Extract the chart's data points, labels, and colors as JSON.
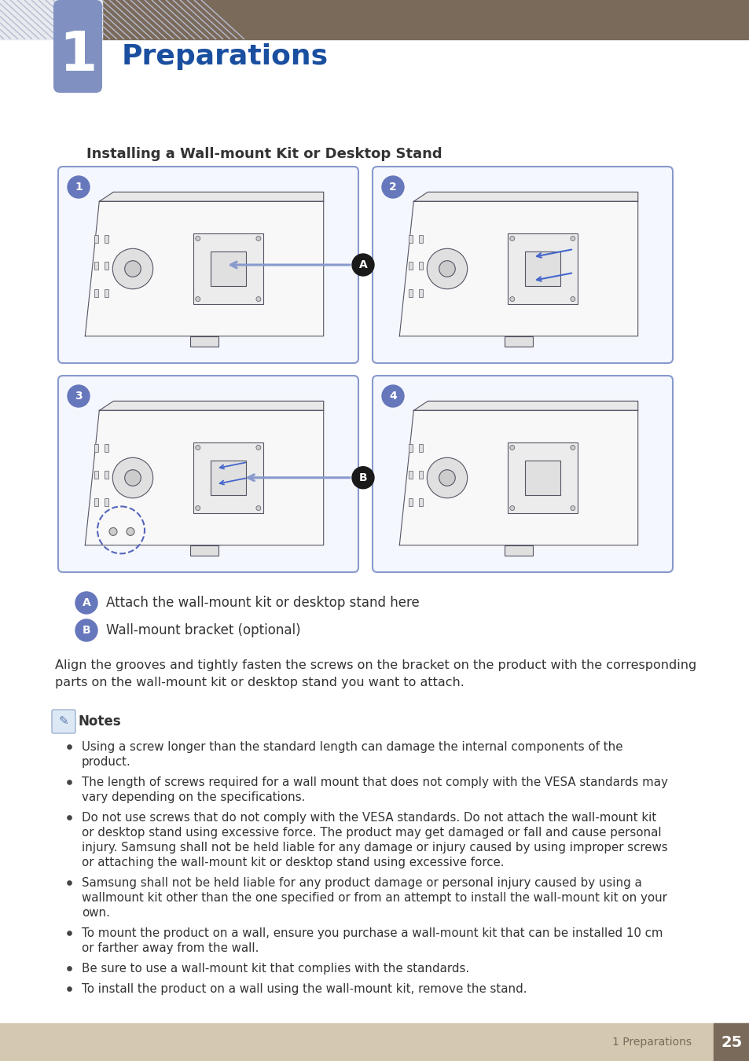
{
  "bg_color": "#ffffff",
  "header_bar_color": "#7a6a5a",
  "chapter_box_color": "#8090c0",
  "chapter_number": "1",
  "chapter_title": "Preparations",
  "chapter_title_color": "#1a4fa0",
  "footer_bar_color": "#d4c8b0",
  "footer_text": "1 Preparations",
  "footer_number": "25",
  "footer_number_bg": "#7a6a5a",
  "section_title": "Installing a Wall-mount Kit or Desktop Stand",
  "annotation_a_text": "Attach the wall-mount kit or desktop stand here",
  "annotation_b_text": "Wall-mount bracket (optional)",
  "body_text_line1": "Align the grooves and tightly fasten the screws on the bracket on the product with the corresponding",
  "body_text_line2": "parts on the wall-mount kit or desktop stand you want to attach.",
  "notes_label": "Notes",
  "bullet_points": [
    "Using a screw longer than the standard length can damage the internal components of the\nproduct.",
    "The length of screws required for a wall mount that does not comply with the VESA standards may\nvary depending on the specifications.",
    "Do not use screws that do not comply with the VESA standards. Do not attach the wall-mount kit\nor desktop stand using excessive force. The product may get damaged or fall and cause personal\ninjury. Samsung shall not be held liable for any damage or injury caused by using improper screws\nor attaching the wall-mount kit or desktop stand using excessive force.",
    "Samsung shall not be held liable for any product damage or personal injury caused by using a\nwallmount kit other than the one specified or from an attempt to install the wall-mount kit on your\nown.",
    "To mount the product on a wall, ensure you purchase a wall-mount kit that can be installed 10 cm\nor farther away from the wall.",
    "Be sure to use a wall-mount kit that complies with the standards.",
    "To install the product on a wall using the wall-mount kit, remove the stand."
  ],
  "diagram_border_color": "#8899cc",
  "diagram_fill_color": "#f5f7ff",
  "label_circle_color": "#6677bb",
  "label_text_color": "#ffffff",
  "black_circle_color": "#1a1a1a",
  "monitor_line_color": "#555555",
  "monitor_bg": "#f8f8f8",
  "arrow_color": "#8899cc"
}
